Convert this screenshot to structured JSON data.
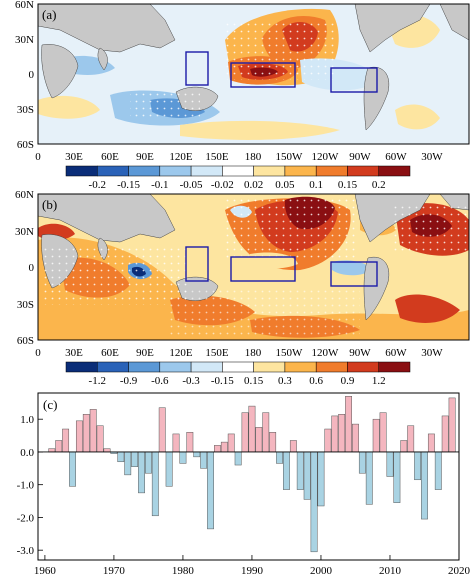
{
  "panels": [
    {
      "label": "(a)",
      "lat_ticks": [
        "60N",
        "30N",
        "0",
        "30S",
        "60S"
      ],
      "lon_ticks": [
        "0",
        "30E",
        "60E",
        "90E",
        "120E",
        "150E",
        "180",
        "150W",
        "120W",
        "90W",
        "60W",
        "30W"
      ],
      "colorbar": {
        "labels": [
          "-0.2",
          "-0.15",
          "-0.1",
          "-0.05",
          "-0.02",
          "0.02",
          "0.05",
          "0.1",
          "0.15",
          "0.2"
        ],
        "colors": [
          "#0a2d78",
          "#2a62b8",
          "#5b98d6",
          "#9cc8ec",
          "#d2e8f7",
          "#ffffff",
          "#fde5a0",
          "#fbb54c",
          "#f07c2c",
          "#d23b1e",
          "#8a0f12"
        ]
      }
    },
    {
      "label": "(b)",
      "lat_ticks": [
        "60N",
        "30N",
        "0",
        "30S",
        "60S"
      ],
      "lon_ticks": [
        "0",
        "30E",
        "60E",
        "90E",
        "120E",
        "150E",
        "180",
        "150W",
        "120W",
        "90W",
        "60W",
        "30W"
      ],
      "colorbar": {
        "labels": [
          "-1.2",
          "-0.9",
          "-0.6",
          "-0.3",
          "-0.15",
          "0.15",
          "0.3",
          "0.6",
          "0.9",
          "1.2"
        ],
        "colors": [
          "#0a2d78",
          "#2a62b8",
          "#5b98d6",
          "#9cc8ec",
          "#d2e8f7",
          "#ffffff",
          "#fde5a0",
          "#fbb54c",
          "#f07c2c",
          "#d23b1e",
          "#8a0f12"
        ]
      }
    }
  ],
  "chart_data": {
    "type": "bar",
    "label": "(c)",
    "x": [
      1961,
      1962,
      1963,
      1964,
      1965,
      1966,
      1967,
      1968,
      1969,
      1970,
      1971,
      1972,
      1973,
      1974,
      1975,
      1976,
      1977,
      1978,
      1979,
      1980,
      1981,
      1982,
      1983,
      1984,
      1985,
      1986,
      1987,
      1988,
      1989,
      1990,
      1991,
      1992,
      1993,
      1994,
      1995,
      1996,
      1997,
      1998,
      1999,
      2000,
      2001,
      2002,
      2003,
      2004,
      2005,
      2006,
      2007,
      2008,
      2009,
      2010,
      2011,
      2012,
      2013,
      2014,
      2015,
      2016,
      2017,
      2018,
      2019
    ],
    "values": [
      0.1,
      0.35,
      0.7,
      -1.05,
      0.95,
      1.15,
      1.3,
      0.8,
      0.1,
      -0.05,
      -0.3,
      -0.7,
      -0.45,
      -1.25,
      -0.65,
      -1.95,
      1.35,
      -1.05,
      0.55,
      -0.35,
      0.6,
      -0.15,
      -0.5,
      -2.35,
      0.2,
      0.3,
      0.55,
      -0.4,
      1.2,
      1.4,
      0.75,
      1.2,
      0.6,
      -0.35,
      -1.15,
      0.35,
      -1.15,
      -1.45,
      -3.05,
      -1.65,
      0.7,
      1.1,
      1.15,
      1.7,
      0.85,
      -0.65,
      -1.6,
      1.0,
      1.2,
      -0.75,
      -1.55,
      0.35,
      0.8,
      -0.85,
      -2.05,
      0.55,
      -1.15,
      1.1,
      1.65
    ],
    "positive_color": "#f4b6bf",
    "negative_color": "#a9d3e3",
    "xlim": [
      1959,
      2020
    ],
    "ylim": [
      -3.3,
      1.8
    ],
    "x_ticks": [
      "1960",
      "1970",
      "1980",
      "1990",
      "2000",
      "2010",
      "2020"
    ],
    "y_ticks": [
      "1.0",
      "0.0",
      "-1.0",
      "-2.0",
      "-3.0"
    ],
    "grid": false
  }
}
